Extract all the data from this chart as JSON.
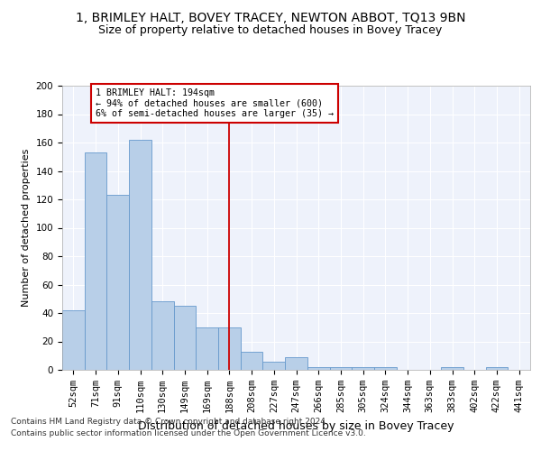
{
  "title1": "1, BRIMLEY HALT, BOVEY TRACEY, NEWTON ABBOT, TQ13 9BN",
  "title2": "Size of property relative to detached houses in Bovey Tracey",
  "xlabel": "Distribution of detached houses by size in Bovey Tracey",
  "ylabel": "Number of detached properties",
  "categories": [
    "52sqm",
    "71sqm",
    "91sqm",
    "110sqm",
    "130sqm",
    "149sqm",
    "169sqm",
    "188sqm",
    "208sqm",
    "227sqm",
    "247sqm",
    "266sqm",
    "285sqm",
    "305sqm",
    "324sqm",
    "344sqm",
    "363sqm",
    "383sqm",
    "402sqm",
    "422sqm",
    "441sqm"
  ],
  "values": [
    42,
    153,
    123,
    162,
    48,
    45,
    30,
    30,
    13,
    6,
    9,
    2,
    2,
    2,
    2,
    0,
    0,
    2,
    0,
    2,
    0
  ],
  "bar_color": "#b8cfe8",
  "bar_edge_color": "#6699cc",
  "vline_color": "#cc0000",
  "vline_index": 7,
  "annotation_line1": "1 BRIMLEY HALT: 194sqm",
  "annotation_line2": "← 94% of detached houses are smaller (600)",
  "annotation_line3": "6% of semi-detached houses are larger (35) →",
  "annotation_box_color": "#cc0000",
  "footnote1": "Contains HM Land Registry data © Crown copyright and database right 2024.",
  "footnote2": "Contains public sector information licensed under the Open Government Licence v3.0.",
  "ylim": [
    0,
    200
  ],
  "yticks": [
    0,
    20,
    40,
    60,
    80,
    100,
    120,
    140,
    160,
    180,
    200
  ],
  "bg_color": "#eef2fb",
  "grid_color": "#ffffff",
  "title1_fontsize": 10,
  "title2_fontsize": 9,
  "xlabel_fontsize": 9,
  "ylabel_fontsize": 8,
  "tick_fontsize": 7.5,
  "footnote_fontsize": 6.5
}
